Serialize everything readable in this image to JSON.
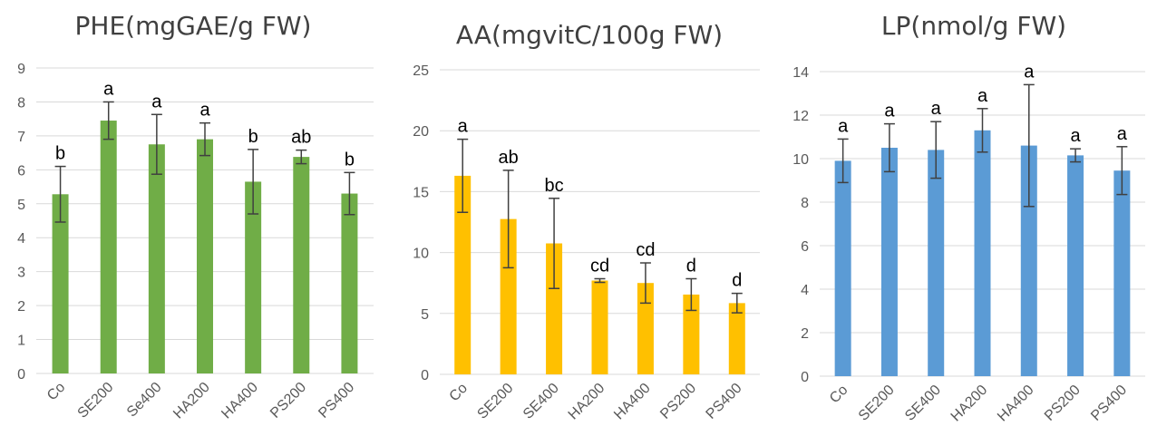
{
  "chart_data": [
    {
      "type": "bar",
      "title": "PHE(mgGAE/g FW)",
      "xlabel": "",
      "ylabel": "",
      "categories": [
        "Co",
        "SE200",
        "Se400",
        "HA200",
        "HA400",
        "PS200",
        "PS400"
      ],
      "values": [
        5.28,
        7.45,
        6.75,
        6.9,
        5.65,
        6.38,
        5.3
      ],
      "errors": [
        0.82,
        0.55,
        0.88,
        0.48,
        0.95,
        0.2,
        0.62
      ],
      "significance": [
        "b",
        "a",
        "a",
        "a",
        "b",
        "ab",
        "b"
      ],
      "ylim": [
        0,
        9
      ],
      "yticks": [
        0,
        1,
        2,
        3,
        4,
        5,
        6,
        7,
        8,
        9
      ],
      "color": "#70ad47",
      "grid": true,
      "legend": "none"
    },
    {
      "type": "bar",
      "title": "AA(mgvitC/100g FW)",
      "xlabel": "",
      "ylabel": "",
      "categories": [
        "Co",
        "SE200",
        "SE400",
        "HA200",
        "HA400",
        "PS200",
        "PS400"
      ],
      "values": [
        16.3,
        12.75,
        10.75,
        7.7,
        7.5,
        6.55,
        5.85
      ],
      "errors": [
        3.0,
        4.0,
        3.7,
        0.15,
        1.65,
        1.3,
        0.8
      ],
      "significance": [
        "a",
        "ab",
        "bc",
        "cd",
        "cd",
        "d",
        "d"
      ],
      "ylim": [
        0,
        25
      ],
      "yticks": [
        0,
        5,
        10,
        15,
        20,
        25
      ],
      "color": "#ffc000",
      "grid": true,
      "legend": "none"
    },
    {
      "type": "bar",
      "title": "LP(nmol/g FW)",
      "xlabel": "",
      "ylabel": "",
      "categories": [
        "Co",
        "SE200",
        "SE400",
        "HA200",
        "HA400",
        "PS200",
        "PS400"
      ],
      "values": [
        9.9,
        10.5,
        10.4,
        11.3,
        10.6,
        10.15,
        9.45
      ],
      "errors": [
        1.0,
        1.1,
        1.3,
        1.0,
        2.8,
        0.3,
        1.1
      ],
      "significance": [
        "a",
        "a",
        "a",
        "a",
        "a",
        "a",
        "a"
      ],
      "ylim": [
        0,
        14
      ],
      "yticks": [
        0,
        2,
        4,
        6,
        8,
        10,
        12,
        14
      ],
      "color": "#5b9bd5",
      "grid": true,
      "legend": "none"
    }
  ]
}
